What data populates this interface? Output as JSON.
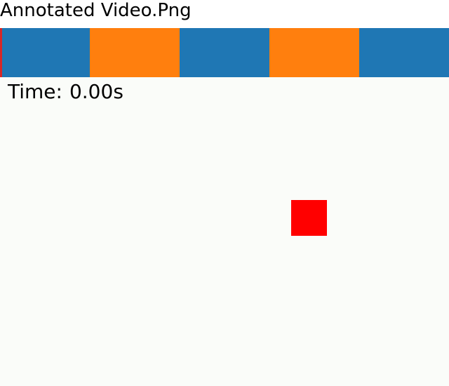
{
  "window": {
    "title": "Annotated Video.Png"
  },
  "timeline": {
    "segments": [
      {
        "color": "#1f77b4"
      },
      {
        "color": "#ff7f0e"
      },
      {
        "color": "#1f77b4"
      },
      {
        "color": "#ff7f0e"
      },
      {
        "color": "#1f77b4"
      }
    ],
    "playhead_fraction": 0,
    "playhead_color": "#d62728"
  },
  "readout": {
    "label": "Time:",
    "value": "0.00s"
  },
  "object": {
    "color": "#ff0000",
    "icon": "square-marker"
  }
}
